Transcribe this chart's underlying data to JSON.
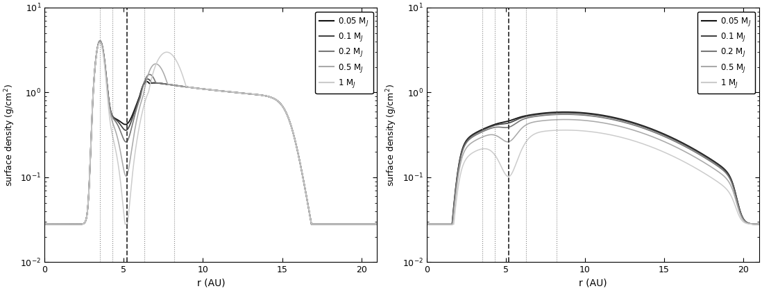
{
  "colors": [
    "#111111",
    "#444444",
    "#777777",
    "#aaaaaa",
    "#cccccc"
  ],
  "masses": [
    0.05,
    0.1,
    0.2,
    0.5,
    1.0
  ],
  "labels": [
    "0.05 M$_\\mathrm{J}$",
    "0.1 M$_\\mathrm{J}$",
    "0.2 M$_\\mathrm{J}$",
    "0.5 M$_\\mathrm{J}$",
    "1 M$_\\mathrm{J}$"
  ],
  "planet_r": 5.2,
  "dotted_rs": [
    3.5,
    4.3,
    6.3,
    8.2
  ],
  "xlim": [
    0,
    21
  ],
  "ylim": [
    0.01,
    10
  ],
  "xlabel": "r (AU)",
  "ylabel": "surface density (g/cm$^2$)",
  "floor_val": 0.028,
  "background": "#ffffff"
}
